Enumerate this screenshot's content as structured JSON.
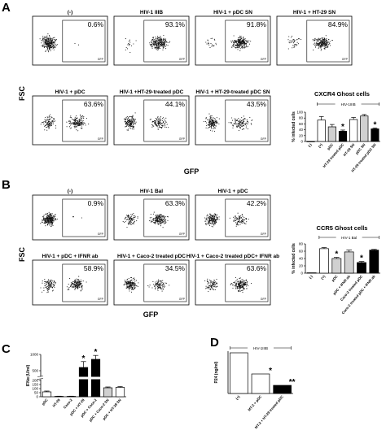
{
  "figure": {
    "panel_letters": [
      "A",
      "B",
      "C",
      "D"
    ],
    "axis_labels": {
      "fsc": "FSC",
      "gfp": "GFP"
    },
    "gate_label": "GFP"
  },
  "flow_panels": {
    "A": [
      {
        "title": "(-)",
        "percent": "0.6%"
      },
      {
        "title": "HIV-1 IIIB",
        "percent": "93.1%"
      },
      {
        "title": "HIV-1 + pDC SN",
        "percent": "91.8%"
      },
      {
        "title": "HIV-1 + HT-29 SN",
        "percent": "84.9%"
      },
      {
        "title": "HIV-1 + pDC",
        "percent": "63.6%"
      },
      {
        "title": "HIV-1 +HT-29-treated pDC",
        "percent": "44.1%"
      },
      {
        "title": "HIV-1 + HT-29-treated pDC SN",
        "percent": "43.5%"
      }
    ],
    "B": [
      {
        "title": "(-)",
        "percent": "0.9%"
      },
      {
        "title": "HIV-1 Bal",
        "percent": "63.3%"
      },
      {
        "title": "HIV-1 + pDC",
        "percent": "42.2%"
      },
      {
        "title": "HIV-1 + pDC + IFNR ab",
        "percent": "58.9%"
      },
      {
        "title": "HIV-1 + Caco-2 treated pDC",
        "percent": "34.5%"
      },
      {
        "title": "HIV-1 + Caco-2 treated pDC+ IFNR ab",
        "percent": "63.6%"
      }
    ]
  },
  "chart_data": [
    {
      "id": "A",
      "type": "bar",
      "title": "CXCR4 Ghost cells",
      "bracket_label": "HIV-1IIIB",
      "ylabel": "% infected cells",
      "ylim": [
        0,
        100
      ],
      "yticks": [
        "0",
        "20",
        "40",
        "60",
        "80",
        "100"
      ],
      "categories": [
        "(-)",
        "(+)",
        "pDC",
        "HT-29 treated pDC",
        "HT-29 SN",
        "pDC SN",
        "HT-29 treated pDC SN"
      ],
      "values": [
        0,
        73,
        50,
        35,
        75,
        87,
        43
      ],
      "errors": [
        0,
        12,
        8,
        4,
        7,
        5,
        3
      ],
      "colors": [
        "#ffffff",
        "#ffffff",
        "#d0d0d0",
        "#000000",
        "#ffffff",
        "#d0d0d0",
        "#000000"
      ],
      "significant": [
        false,
        false,
        false,
        true,
        false,
        false,
        true
      ],
      "marker": "*"
    },
    {
      "id": "B",
      "type": "bar",
      "title": "CCR5 Ghost cells",
      "bracket_label": "HIV-1 Bal",
      "ylabel": "% infected cells",
      "ylim": [
        0,
        80
      ],
      "yticks": [
        "0",
        "20",
        "40",
        "60",
        "80"
      ],
      "categories": [
        "(-)",
        "(+)",
        "pDC",
        "pDC + IFNR ab",
        "Caco-2 treated pDC",
        "Caco-2 treated pDC + IFNR ab"
      ],
      "values": [
        1,
        67,
        40,
        58,
        29,
        63
      ],
      "errors": [
        0,
        3,
        3,
        5,
        3,
        2
      ],
      "colors": [
        "#ffffff",
        "#ffffff",
        "#d0d0d0",
        "#d0d0d0",
        "#000000",
        "#000000"
      ],
      "significant": [
        false,
        false,
        true,
        false,
        true,
        false
      ],
      "marker": "*"
    },
    {
      "id": "C",
      "type": "bar",
      "ylabel": "IFNα (U/ml)",
      "ylim": [
        0,
        1000
      ],
      "yticks": [
        "0",
        "50",
        "100",
        "150",
        "200",
        "500",
        "1000"
      ],
      "categories": [
        "pDC",
        "HT-29",
        "Caco-2",
        "pDC + HT-29",
        "pDC + Caco-2",
        "pDC + Caco-2 SN",
        "pDC + HT-29 SN"
      ],
      "values": [
        60,
        5,
        5,
        600,
        850,
        110,
        115
      ],
      "errors": [
        10,
        2,
        2,
        180,
        120,
        10,
        10
      ],
      "colors": [
        "#ffffff",
        "#ffffff",
        "#ffffff",
        "#000000",
        "#000000",
        "#d0d0d0",
        "#ffffff"
      ],
      "significant": [
        false,
        false,
        false,
        true,
        true,
        false,
        false
      ],
      "marker": "*"
    },
    {
      "id": "D",
      "type": "bar",
      "bracket_label": "HIV-1IIIB",
      "ylabel": "P24 (ng/ml)",
      "ylim": [
        0,
        26
      ],
      "categories": [
        "(+)",
        "MT-2 + pDC",
        "MT-2 + HT-29 treated pDC"
      ],
      "values": [
        25,
        12,
        5
      ],
      "colors": [
        "#ffffff",
        "#ffffff",
        "#000000"
      ],
      "significant_labels": [
        "",
        "*",
        "**"
      ]
    }
  ]
}
